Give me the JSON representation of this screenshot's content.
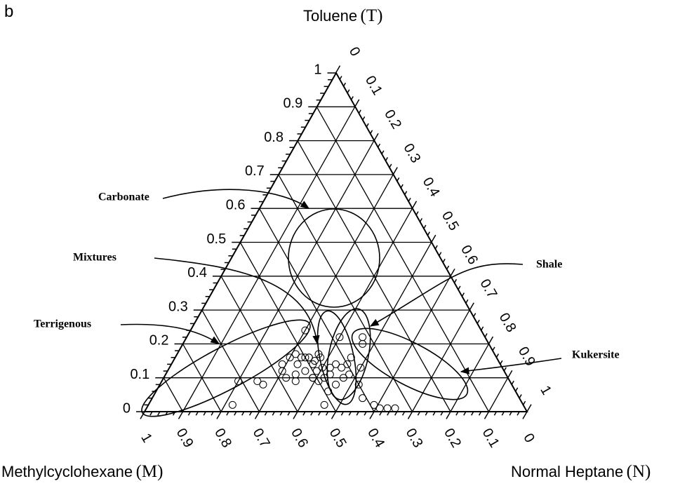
{
  "panel_label": "b",
  "chart_data": {
    "type": "ternary",
    "axes": {
      "T": {
        "name": "Toluene",
        "symbol": "(T)"
      },
      "M": {
        "name": "Methylcyclohexane",
        "symbol": "(M)"
      },
      "N": {
        "name": "Normal Heptane",
        "symbol": "(N)"
      }
    },
    "ticks": [
      0,
      0.1,
      0.2,
      0.3,
      0.4,
      0.5,
      0.6,
      0.7,
      0.8,
      0.9,
      1
    ],
    "grid": true,
    "annotations": [
      "Carbonate",
      "Mixtures",
      "Terrigenous",
      "Shale",
      "Kukersite"
    ],
    "points": {
      "T": [
        0.24,
        0.17,
        0.16,
        0.16,
        0.14,
        0.12,
        0.1,
        0.11,
        0.14,
        0.16,
        0.16,
        0.15,
        0.17,
        0.16,
        0.14,
        0.12,
        0.12,
        0.13,
        0.13,
        0.14,
        0.13,
        0.14,
        0.1,
        0.11,
        0.1,
        0.1,
        0.08,
        0.06,
        0.02,
        0.22,
        0.16,
        0.13,
        0.2,
        0.22,
        0.08,
        0.04,
        0.02,
        0.01,
        0.01,
        0.01,
        0.09,
        0.08,
        0.09,
        0.02,
        0.09,
        0.1,
        0.11,
        0.09,
        0.16
      ],
      "N": [
        0.3,
        0.31,
        0.33,
        0.3,
        0.29,
        0.3,
        0.32,
        0.34,
        0.33,
        0.34,
        0.35,
        0.37,
        0.37,
        0.38,
        0.37,
        0.36,
        0.39,
        0.4,
        0.42,
        0.43,
        0.45,
        0.46,
        0.47,
        0.43,
        0.42,
        0.39,
        0.46,
        0.45,
        0.46,
        0.4,
        0.46,
        0.5,
        0.47,
        0.46,
        0.52,
        0.55,
        0.59,
        0.61,
        0.63,
        0.65,
        0.25,
        0.27,
        0.2,
        0.22,
        0.35,
        0.39,
        0.48,
        0.41,
        0.35
      ]
    },
    "color": "#000000"
  }
}
